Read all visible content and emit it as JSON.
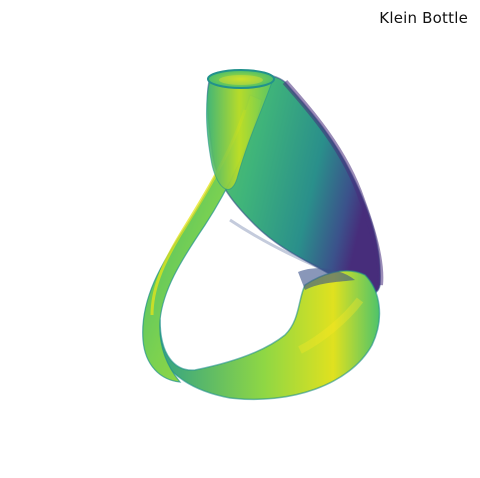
{
  "figure": {
    "title": "Klein Bottle",
    "colormap": "viridis",
    "colors": {
      "dark_purple": "#440154",
      "deep_blue": "#3b528b",
      "teal": "#21918c",
      "green": "#5ec962",
      "yellow": "#fde725"
    }
  }
}
